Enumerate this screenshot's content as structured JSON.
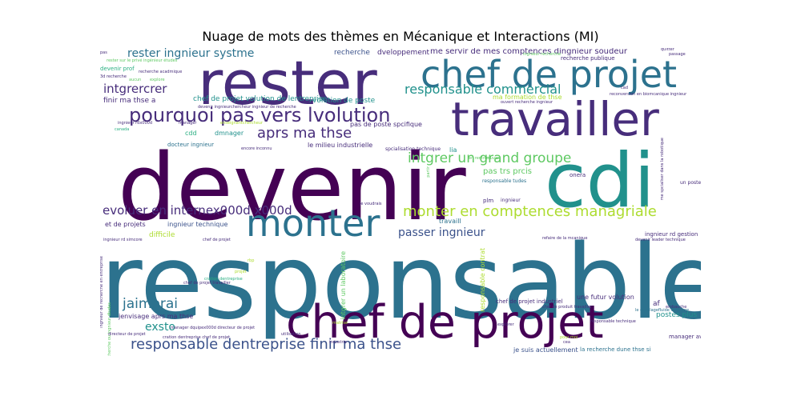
{
  "title": "Nuage de mots des thèmes en Mécanique et Interactions (MI)",
  "palette": {
    "dark_purple": "#440154",
    "indigo": "#472d7b",
    "slate_blue": "#3b528b",
    "steel_blue": "#2c728e",
    "teal": "#21918c",
    "green": "#28ae80",
    "light_green": "#5ec962",
    "lime": "#addc30",
    "yellow": "#d8e219"
  },
  "words": [
    {
      "text": "responsable",
      "color": "#2c728e"
    },
    {
      "text": "devenir",
      "color": "#440154"
    },
    {
      "text": "cdi",
      "color": "#21918c"
    },
    {
      "text": "rester",
      "color": "#472d7b"
    },
    {
      "text": "chef de projet",
      "color": "#2c728e"
    },
    {
      "text": "travailler",
      "color": "#472d7b"
    },
    {
      "text": "chef de projet",
      "color": "#440154"
    },
    {
      "text": "monter",
      "color": "#2c728e"
    },
    {
      "text": "pourquoi pas vers lvolution",
      "color": "#472d7b"
    },
    {
      "text": "monter en comptences managriale",
      "color": "#addc30"
    },
    {
      "text": "responsable dentreprise finir ma thse",
      "color": "#3b528b"
    },
    {
      "text": "evoluer en internex000d x000d",
      "color": "#472d7b"
    },
    {
      "text": "responsable commercial",
      "color": "#21918c"
    },
    {
      "text": "rester ingnieur systme",
      "color": "#2c728e"
    },
    {
      "text": "aprs ma thse",
      "color": "#472d7b"
    },
    {
      "text": "intgrer un grand groupe",
      "color": "#5ec962"
    },
    {
      "text": "jaimerai",
      "color": "#2c728e"
    },
    {
      "text": "intgrercrer",
      "color": "#472d7b"
    },
    {
      "text": "passer ingnieur",
      "color": "#3b528b"
    },
    {
      "text": "exsto",
      "color": "#21918c"
    },
    {
      "text": "travail",
      "color": "#472d7b"
    },
    {
      "text": "me servir de mes comptences dingnieur soudeur",
      "color": "#472d7b"
    },
    {
      "text": "recherche",
      "color": "#3b528b"
    },
    {
      "text": "dveloppement",
      "color": "#472d7b"
    },
    {
      "text": "chef de projet volution de lentreprise",
      "color": "#21918c"
    },
    {
      "text": "volution de poste",
      "color": "#21918c"
    },
    {
      "text": "finir ma thse a",
      "color": "#472d7b"
    },
    {
      "text": "pas de poste spcifique",
      "color": "#472d7b"
    },
    {
      "text": "le milieu industrielle",
      "color": "#472d7b"
    },
    {
      "text": "docteur ingnieur",
      "color": "#2c728e"
    },
    {
      "text": "dmnager",
      "color": "#21918c"
    },
    {
      "text": "cdd",
      "color": "#28ae80"
    },
    {
      "text": "pas trs prcis",
      "color": "#5ec962"
    },
    {
      "text": "et de projets",
      "color": "#472d7b"
    },
    {
      "text": "ingnieur technique",
      "color": "#3b528b"
    },
    {
      "text": "difficile",
      "color": "#addc30"
    },
    {
      "text": "jenvisage aprs ma thse",
      "color": "#472d7b"
    },
    {
      "text": "une futur volution",
      "color": "#472d7b"
    },
    {
      "text": "af",
      "color": "#472d7b"
    },
    {
      "text": "postes plus",
      "color": "#21918c"
    },
    {
      "text": "manager avoir",
      "color": "#472d7b"
    },
    {
      "text": "je suis actuellement",
      "color": "#3b528b"
    },
    {
      "text": "la recherche dune thse si",
      "color": "#2c728e"
    },
    {
      "text": "chef de projet industriel",
      "color": "#472d7b"
    },
    {
      "text": "ingnieur rd gestion",
      "color": "#472d7b"
    },
    {
      "text": "devenir prof",
      "color": "#28ae80"
    },
    {
      "text": "recherche publique",
      "color": "#472d7b"
    },
    {
      "text": "plm",
      "color": "#472d7b"
    },
    {
      "text": "ingnieur",
      "color": "#472d7b"
    },
    {
      "text": "onera",
      "color": "#472d7b"
    },
    {
      "text": "lia",
      "color": "#21918c"
    },
    {
      "text": "un poste",
      "color": "#472d7b"
    },
    {
      "text": "travaill",
      "color": "#2c728e"
    },
    {
      "text": "ma formation de thse",
      "color": "#addc30"
    },
    {
      "text": "spcialisation technique",
      "color": "#472d7b"
    },
    {
      "text": "responsable tudes",
      "color": "#2c728e"
    },
    {
      "text": "3d recherche",
      "color": "#472d7b"
    },
    {
      "text": "enseignantchercheur",
      "color": "#addc30"
    },
    {
      "text": "quitter",
      "color": "#472d7b"
    },
    {
      "text": "passage",
      "color": "#472d7b"
    },
    {
      "text": "ingnieur recherche",
      "color": "#5ec962"
    },
    {
      "text": "intgrer un laboratoire",
      "color": "#5ec962"
    },
    {
      "text": "responsable contrat",
      "color": "#addc30"
    },
    {
      "text": "cration dentreprise",
      "color": "#28ae80"
    },
    {
      "text": "ingnieur rd simcore",
      "color": "#472d7b"
    },
    {
      "text": "chef de projet",
      "color": "#472d7b"
    },
    {
      "text": "ingnieur de recherche en entreprise",
      "color": "#472d7b"
    },
    {
      "text": "ingnieur de recherche ou ingnieur dtudes",
      "color": "#5ec962"
    },
    {
      "text": "ingnieur rdx000d",
      "color": "#472d7b"
    },
    {
      "text": "manager",
      "color": "#472d7b"
    },
    {
      "text": "canada",
      "color": "#28ae80"
    },
    {
      "text": "aucun",
      "color": "#5ec962"
    },
    {
      "text": "explore",
      "color": "#5ec962"
    },
    {
      "text": "recherche acadmique",
      "color": "#472d7b"
    },
    {
      "text": "rester sur le privé ingénieur études",
      "color": "#5ec962"
    },
    {
      "text": "pas",
      "color": "#472d7b"
    },
    {
      "text": "matrise",
      "color": "#addc30"
    },
    {
      "text": "cea",
      "color": "#472d7b"
    },
    {
      "text": "pour moi",
      "color": "#addc30"
    },
    {
      "text": "explorer",
      "color": "#472d7b"
    },
    {
      "text": "le couplagefluide structure",
      "color": "#2c728e"
    },
    {
      "text": "responsable technique",
      "color": "#472d7b"
    },
    {
      "text": "devenir leader technique",
      "color": "#472d7b"
    },
    {
      "text": "refaire de la mcanique",
      "color": "#472d7b"
    },
    {
      "text": "me spcialiser dans la robotique",
      "color": "#472d7b"
    },
    {
      "text": "reconversion en biomcanique ingnieur",
      "color": "#472d7b"
    },
    {
      "text": "trouver",
      "color": "#5ec962"
    },
    {
      "text": "en rentrant",
      "color": "#5ec962"
    },
    {
      "text": "cad",
      "color": "#472d7b"
    },
    {
      "text": "manager dquipex000d directeur de projet",
      "color": "#472d7b"
    },
    {
      "text": "directeur de projet",
      "color": "#472d7b"
    },
    {
      "text": "industrie",
      "color": "#472d7b"
    },
    {
      "text": "utilisation",
      "color": "#472d7b"
    },
    {
      "text": "rbp",
      "color": "#addc30"
    },
    {
      "text": "projet",
      "color": "#addc30"
    },
    {
      "text": "partir",
      "color": "#5ec962"
    },
    {
      "text": "je voudrais",
      "color": "#472d7b"
    },
    {
      "text": "encore inconnu",
      "color": "#472d7b"
    },
    {
      "text": "ouvert recherche ingnieur",
      "color": "#472d7b"
    },
    {
      "text": "devenir ingnieurchercheur ingnieur de recherche",
      "color": "#472d7b"
    },
    {
      "text": "chef de projet travailler",
      "color": "#472d7b"
    },
    {
      "text": "cration dentreprise chef de projet",
      "color": "#472d7b"
    },
    {
      "text": "chef de produit travailler",
      "color": "#472d7b"
    },
    {
      "text": "embauche",
      "color": "#472d7b"
    }
  ]
}
